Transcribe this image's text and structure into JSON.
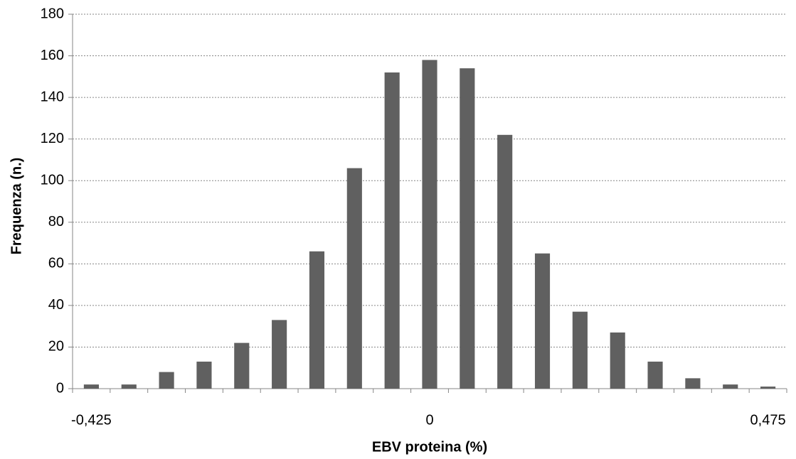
{
  "chart_data": {
    "type": "bar",
    "xlabel": "EBV proteina (%)",
    "ylabel": "Frequenza (n.)",
    "categories": [
      "-0,425",
      null,
      null,
      null,
      null,
      null,
      null,
      null,
      null,
      "0",
      null,
      null,
      null,
      null,
      null,
      null,
      null,
      null,
      "0,475"
    ],
    "values": [
      2,
      2,
      8,
      13,
      22,
      33,
      66,
      106,
      152,
      158,
      154,
      122,
      65,
      37,
      27,
      13,
      5,
      2,
      1
    ],
    "color": "#606060",
    "ylim": [
      0,
      180
    ],
    "yticks": [
      0,
      20,
      40,
      60,
      80,
      100,
      120,
      140,
      160,
      180
    ],
    "grid": true
  }
}
